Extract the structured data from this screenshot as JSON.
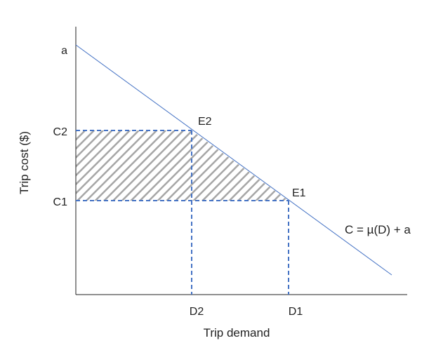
{
  "diagram": {
    "y_axis_title": "Trip cost ($)",
    "x_axis_title": "Trip demand",
    "y_ticks": [
      "a",
      "C2",
      "C1"
    ],
    "x_ticks": [
      "D2",
      "D1"
    ],
    "points": [
      "E2",
      "E1"
    ],
    "equation": "C = µ(D) + a",
    "colors": {
      "line": "#4472c4",
      "dashed": "#4472c4",
      "hatch": "#a6a6a6",
      "axis": "#222222"
    }
  }
}
